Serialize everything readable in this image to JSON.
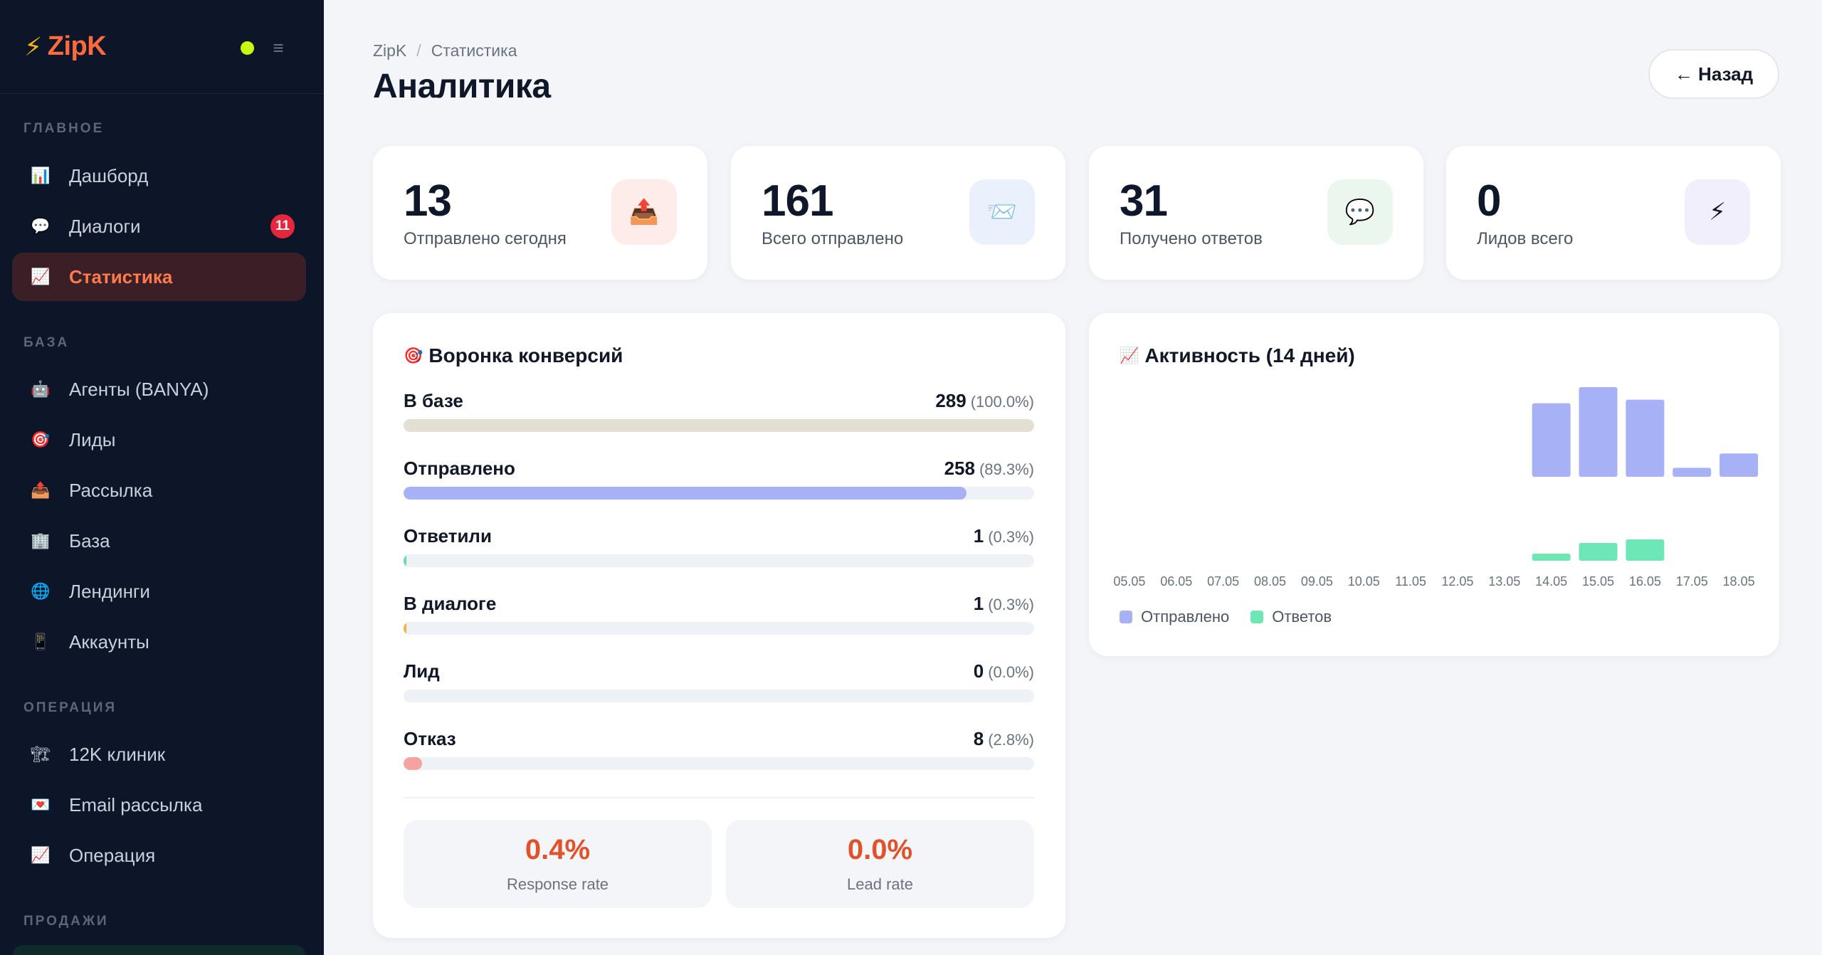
{
  "sidebar": {
    "logo": "ZipK",
    "sections": {
      "main": "ГЛАВНОЕ",
      "base": "БАЗА",
      "operation": "ОПЕРАЦИЯ",
      "sales": "ПРОДАЖИ"
    },
    "items": [
      {
        "label": "Дашборд",
        "icon": "📊"
      },
      {
        "label": "Диалоги",
        "icon": "💬",
        "badge": "11"
      },
      {
        "label": "Статистика",
        "icon": "📈"
      },
      {
        "label": "Агенты (BANYA)",
        "icon": "🤖"
      },
      {
        "label": "Лиды",
        "icon": "🎯"
      },
      {
        "label": "Рассылка",
        "icon": "📤"
      },
      {
        "label": "База",
        "icon": "🏢"
      },
      {
        "label": "Лендинги",
        "icon": "🌐"
      },
      {
        "label": "Аккаунты",
        "icon": "📱"
      },
      {
        "label": "12K клиник",
        "icon": "🏗"
      },
      {
        "label": "Email рассылка",
        "icon": "💌"
      },
      {
        "label": "Операция",
        "icon": "📈"
      }
    ]
  },
  "header": {
    "breadcrumb": [
      "ZipK",
      "Статистика"
    ],
    "title": "Аналитика",
    "back_label": "← Назад"
  },
  "stats": [
    {
      "value": "13",
      "label": "Отправлено сегодня",
      "icon": "📤",
      "bg": "#fdecea"
    },
    {
      "value": "161",
      "label": "Всего отправлено",
      "icon": "📨",
      "bg": "#eaf1fd"
    },
    {
      "value": "31",
      "label": "Получено ответов",
      "icon": "💬",
      "bg": "#ebf7ee"
    },
    {
      "value": "0",
      "label": "Лидов всего",
      "icon": "⚡",
      "bg": "#f0effb"
    }
  ],
  "funnel": {
    "title": "Воронка конверсий",
    "icon": "🎯",
    "rows": [
      {
        "label": "В базе",
        "count": "289",
        "pct": "(100.0%)",
        "fraction": 1.0,
        "color": "#e4dfd3"
      },
      {
        "label": "Отправлено",
        "count": "258",
        "pct": "(89.3%)",
        "fraction": 0.893,
        "color": "#a7b1f5"
      },
      {
        "label": "Ответили",
        "count": "1",
        "pct": "(0.3%)",
        "fraction": 0.003,
        "color": "#5ee0a2"
      },
      {
        "label": "В диалоге",
        "count": "1",
        "pct": "(0.3%)",
        "fraction": 0.003,
        "color": "#f5b23c"
      },
      {
        "label": "Лид",
        "count": "0",
        "pct": "(0.0%)",
        "fraction": 0.0,
        "color": "#a7b1f5"
      },
      {
        "label": "Отказ",
        "count": "8",
        "pct": "(2.8%)",
        "fraction": 0.028,
        "color": "#f5a3a0"
      }
    ],
    "response_rate": {
      "value": "0.4%",
      "label": "Response rate"
    },
    "lead_rate": {
      "value": "0.0%",
      "label": "Lead rate"
    }
  },
  "activity": {
    "title": "Активность (14 дней)",
    "icon": "📈"
  },
  "chart_data": {
    "type": "bar",
    "categories": [
      "05.05",
      "06.05",
      "07.05",
      "08.05",
      "09.05",
      "10.05",
      "11.05",
      "12.05",
      "13.05",
      "14.05",
      "15.05",
      "16.05",
      "17.05",
      "18.05"
    ],
    "series": [
      {
        "name": "Отправлено",
        "color": "#a7b1f5",
        "values": [
          0,
          0,
          0,
          0,
          0,
          0,
          0,
          0,
          0,
          41,
          50,
          43,
          5,
          13
        ]
      },
      {
        "name": "Ответов",
        "color": "#6ee7b7",
        "values": [
          0,
          0,
          0,
          0,
          0,
          0,
          0,
          0,
          0,
          2,
          5,
          6,
          0,
          0
        ]
      }
    ],
    "legend": "bottom-left",
    "grid": false
  }
}
